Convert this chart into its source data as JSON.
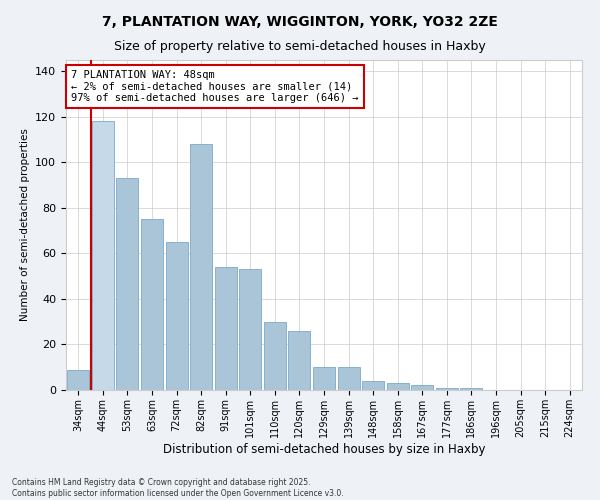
{
  "title": "7, PLANTATION WAY, WIGGINTON, YORK, YO32 2ZE",
  "subtitle": "Size of property relative to semi-detached houses in Haxby",
  "xlabel": "Distribution of semi-detached houses by size in Haxby",
  "ylabel": "Number of semi-detached properties",
  "categories": [
    "34sqm",
    "44sqm",
    "53sqm",
    "63sqm",
    "72sqm",
    "82sqm",
    "91sqm",
    "101sqm",
    "110sqm",
    "120sqm",
    "129sqm",
    "139sqm",
    "148sqm",
    "158sqm",
    "167sqm",
    "177sqm",
    "186sqm",
    "196sqm",
    "205sqm",
    "215sqm",
    "224sqm"
  ],
  "values": [
    9,
    118,
    93,
    75,
    65,
    108,
    54,
    53,
    30,
    26,
    10,
    10,
    4,
    3,
    2,
    1,
    1,
    0,
    0,
    0,
    0
  ],
  "highlight_index": 1,
  "bar_color": "#aac4d8",
  "highlight_bar_color": "#c5d9e8",
  "red_line_x": 0.5,
  "annotation_title": "7 PLANTATION WAY: 48sqm",
  "annotation_line1": "← 2% of semi-detached houses are smaller (14)",
  "annotation_line2": "97% of semi-detached houses are larger (646) →",
  "ylim": [
    0,
    145
  ],
  "yticks": [
    0,
    20,
    40,
    60,
    80,
    100,
    120,
    140
  ],
  "footer_line1": "Contains HM Land Registry data © Crown copyright and database right 2025.",
  "footer_line2": "Contains public sector information licensed under the Open Government Licence v3.0.",
  "bg_color": "#eef2f7",
  "plot_bg_color": "#ffffff",
  "grid_color": "#cccccc",
  "title_fontsize": 10,
  "subtitle_fontsize": 9,
  "annotation_box_edge_color": "#cc0000",
  "red_line_color": "#cc0000"
}
